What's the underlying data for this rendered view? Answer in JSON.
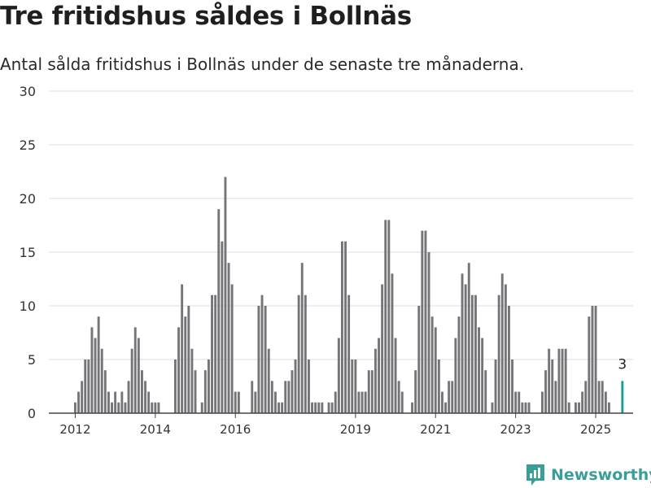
{
  "header": {
    "title": "Tre fritidshus såldes i Bollnäs",
    "subtitle": "Antal sålda fritidshus i Bollnäs under de senaste tre månaderna."
  },
  "brand": {
    "name": "Newsworthy",
    "icon": "newsworthy-logo-icon",
    "color": "#3a9e98"
  },
  "colors": {
    "bar": "#747479",
    "highlight": "#14a096",
    "grid": "#dddddd",
    "axis": "#444444"
  },
  "chart_data": {
    "type": "bar",
    "title": "Tre fritidshus såldes i Bollnäs",
    "subtitle": "Antal sålda fritidshus i Bollnäs under de senaste tre månaderna.",
    "ylim": [
      0,
      30
    ],
    "yticks": [
      0,
      5,
      10,
      15,
      20,
      25,
      30
    ],
    "xtick_labels": [
      "2012",
      "2014",
      "2016",
      "2019",
      "2021",
      "2023",
      "2025"
    ],
    "grid": true,
    "start_month": "2012-01",
    "values": [
      1,
      2,
      3,
      5,
      5,
      8,
      7,
      9,
      6,
      4,
      2,
      1,
      2,
      1,
      2,
      1,
      3,
      6,
      8,
      7,
      4,
      3,
      2,
      1,
      1,
      1,
      0,
      0,
      0,
      0,
      5,
      8,
      12,
      9,
      10,
      6,
      4,
      0,
      1,
      4,
      5,
      11,
      11,
      19,
      16,
      22,
      14,
      12,
      2,
      2,
      0,
      0,
      0,
      3,
      2,
      10,
      11,
      10,
      6,
      3,
      2,
      1,
      1,
      3,
      3,
      4,
      5,
      11,
      14,
      11,
      5,
      1,
      1,
      1,
      1,
      0,
      1,
      1,
      2,
      7,
      16,
      16,
      11,
      5,
      5,
      2,
      2,
      2,
      4,
      4,
      6,
      7,
      12,
      18,
      18,
      13,
      7,
      3,
      2,
      0,
      0,
      1,
      4,
      10,
      17,
      17,
      15,
      9,
      8,
      5,
      2,
      1,
      3,
      3,
      7,
      9,
      13,
      12,
      14,
      11,
      11,
      8,
      7,
      4,
      0,
      1,
      5,
      11,
      13,
      12,
      10,
      5,
      2,
      2,
      1,
      1,
      1,
      0,
      0,
      0,
      2,
      4,
      6,
      5,
      3,
      6,
      6,
      6,
      1,
      0,
      1,
      1,
      2,
      3,
      9,
      10,
      10,
      3,
      3,
      2,
      1,
      0,
      0,
      0,
      3
    ],
    "highlight": {
      "value": 3,
      "label": "3"
    }
  }
}
